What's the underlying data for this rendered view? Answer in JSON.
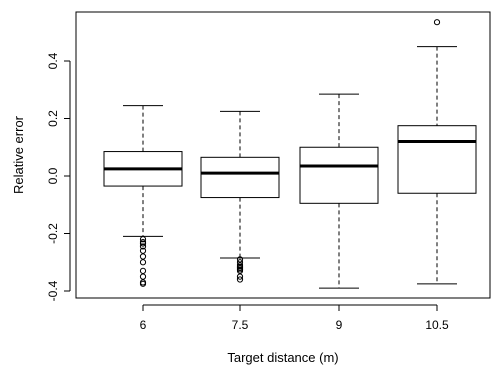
{
  "chart_data": {
    "type": "boxplot",
    "title": "",
    "xlabel": "Target distance (m)",
    "ylabel": "Relative error",
    "ylim": [
      -0.42,
      0.55
    ],
    "yticks": [
      -0.4,
      -0.2,
      0.0,
      0.2,
      0.4
    ],
    "ytick_labels": [
      "-0.4",
      "-0.2",
      "0.0",
      "0.2",
      "0.4"
    ],
    "grid": false,
    "categories": [
      "6",
      "7.5",
      "9",
      "10.5"
    ],
    "boxes": [
      {
        "category": "6",
        "whisker_low": -0.21,
        "q1": -0.035,
        "median": 0.025,
        "q3": 0.085,
        "whisker_high": 0.245,
        "outliers": [
          -0.22,
          -0.23,
          -0.235,
          -0.245,
          -0.26,
          -0.28,
          -0.3,
          -0.33,
          -0.35,
          -0.37,
          -0.375
        ]
      },
      {
        "category": "7.5",
        "whisker_low": -0.285,
        "q1": -0.075,
        "median": 0.01,
        "q3": 0.065,
        "whisker_high": 0.225,
        "outliers": [
          -0.29,
          -0.3,
          -0.31,
          -0.315,
          -0.32,
          -0.325,
          -0.33,
          -0.35,
          -0.36
        ]
      },
      {
        "category": "9",
        "whisker_low": -0.39,
        "q1": -0.095,
        "median": 0.035,
        "q3": 0.1,
        "whisker_high": 0.285,
        "outliers": []
      },
      {
        "category": "10.5",
        "whisker_low": -0.375,
        "q1": -0.06,
        "median": 0.12,
        "q3": 0.175,
        "whisker_high": 0.45,
        "outliers": [
          0.535
        ]
      }
    ]
  }
}
